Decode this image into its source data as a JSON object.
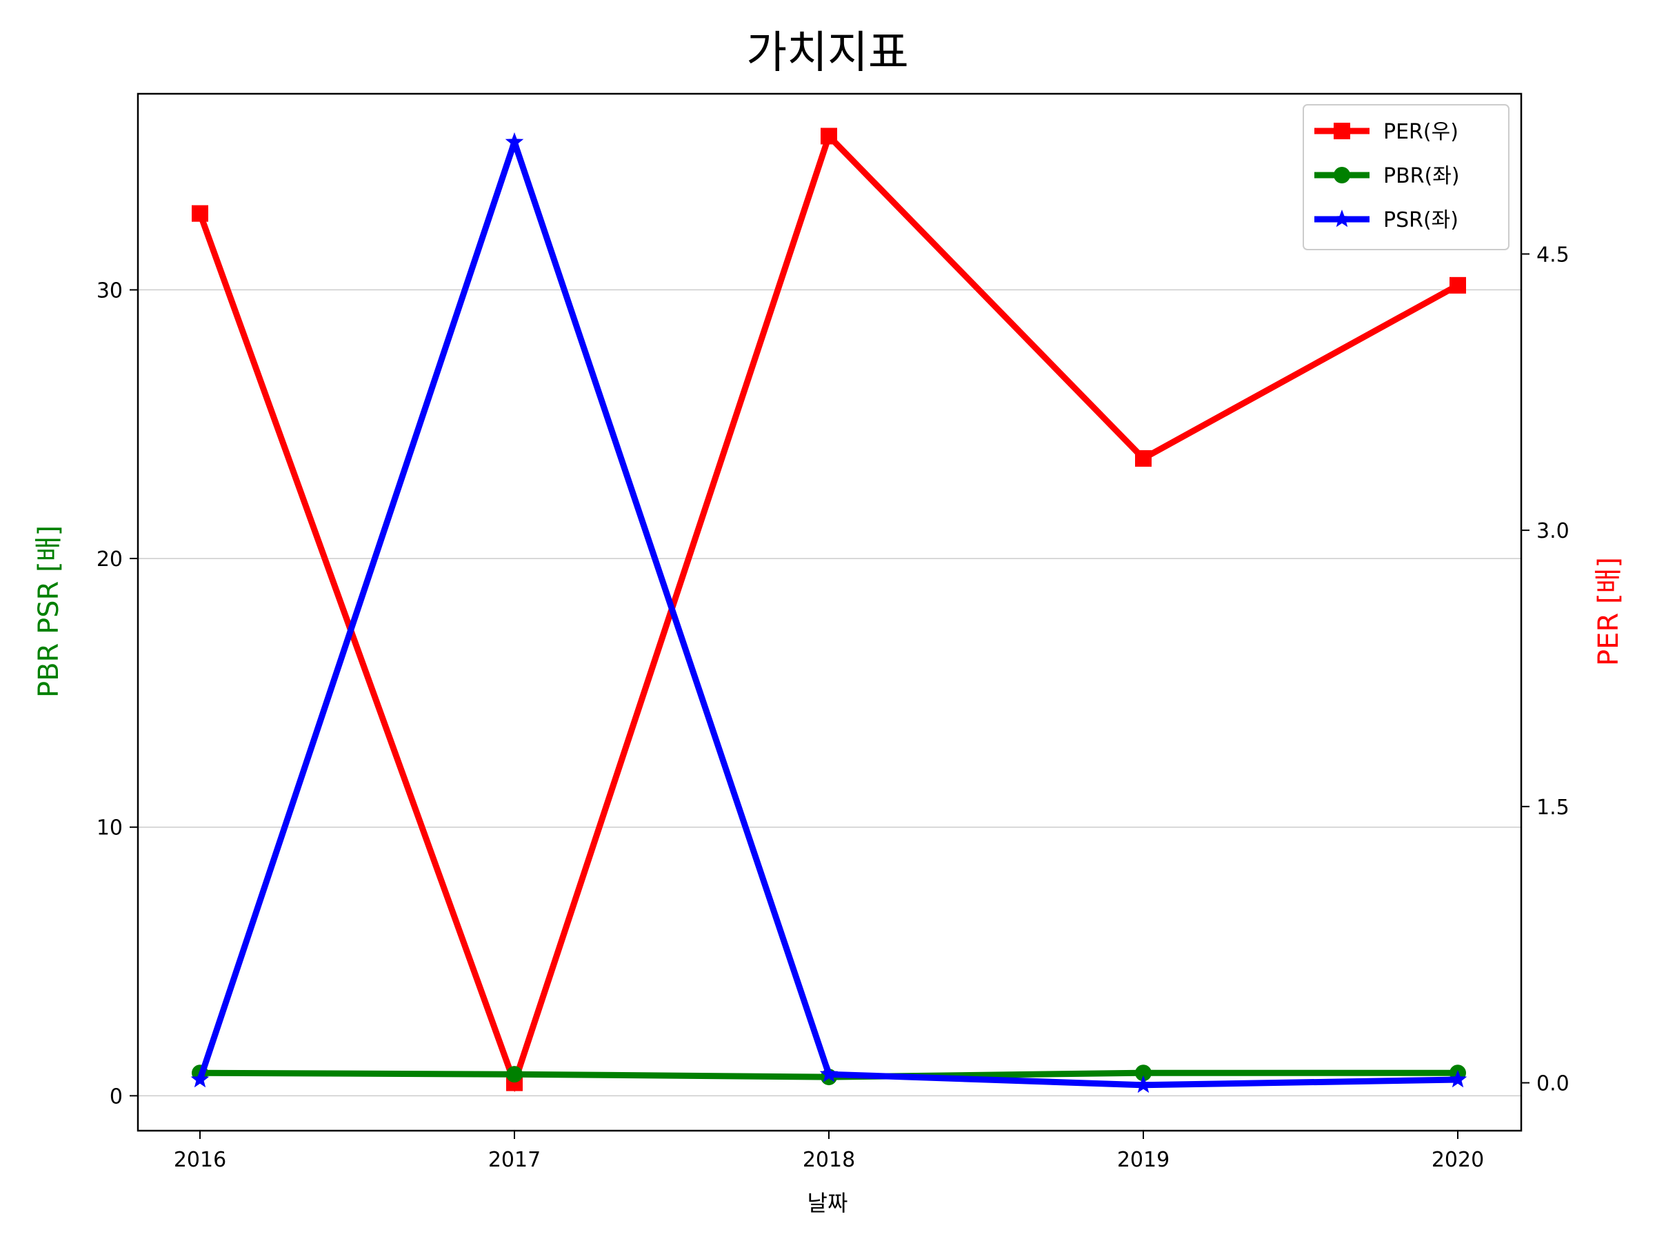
{
  "chart_data": {
    "type": "line",
    "title": "가치지표",
    "xlabel": "날짜",
    "ylabel_left": "PBR PSR [배]",
    "ylabel_right": "PER [배]",
    "categories": [
      "2016",
      "2017",
      "2018",
      "2019",
      "2020"
    ],
    "left_axis": {
      "ylim": [
        -1.3,
        37.3
      ],
      "ticks": [
        "0",
        "10",
        "20",
        "30"
      ],
      "tick_values": [
        0,
        10,
        20,
        30
      ],
      "color": "#008000"
    },
    "right_axis": {
      "ylim": [
        -0.26,
        5.37
      ],
      "ticks": [
        "0.0",
        "1.5",
        "3.0",
        "4.5"
      ],
      "tick_values": [
        0,
        1.5,
        3.0,
        4.5
      ],
      "color": "#ff0000"
    },
    "grid": "horizontal",
    "legend": "top-right",
    "series": [
      {
        "name": "PER(우)",
        "axis": "right",
        "color": "#ff0000",
        "marker": "square",
        "values": [
          4.72,
          0.0,
          5.14,
          3.39,
          4.33
        ]
      },
      {
        "name": "PBR(좌)",
        "axis": "left",
        "color": "#008000",
        "marker": "circle",
        "values": [
          0.85,
          0.8,
          0.7,
          0.85,
          0.85
        ]
      },
      {
        "name": "PSR(좌)",
        "axis": "left",
        "color": "#0000ff",
        "marker": "star",
        "values": [
          0.6,
          35.5,
          0.8,
          0.4,
          0.6
        ]
      }
    ]
  }
}
